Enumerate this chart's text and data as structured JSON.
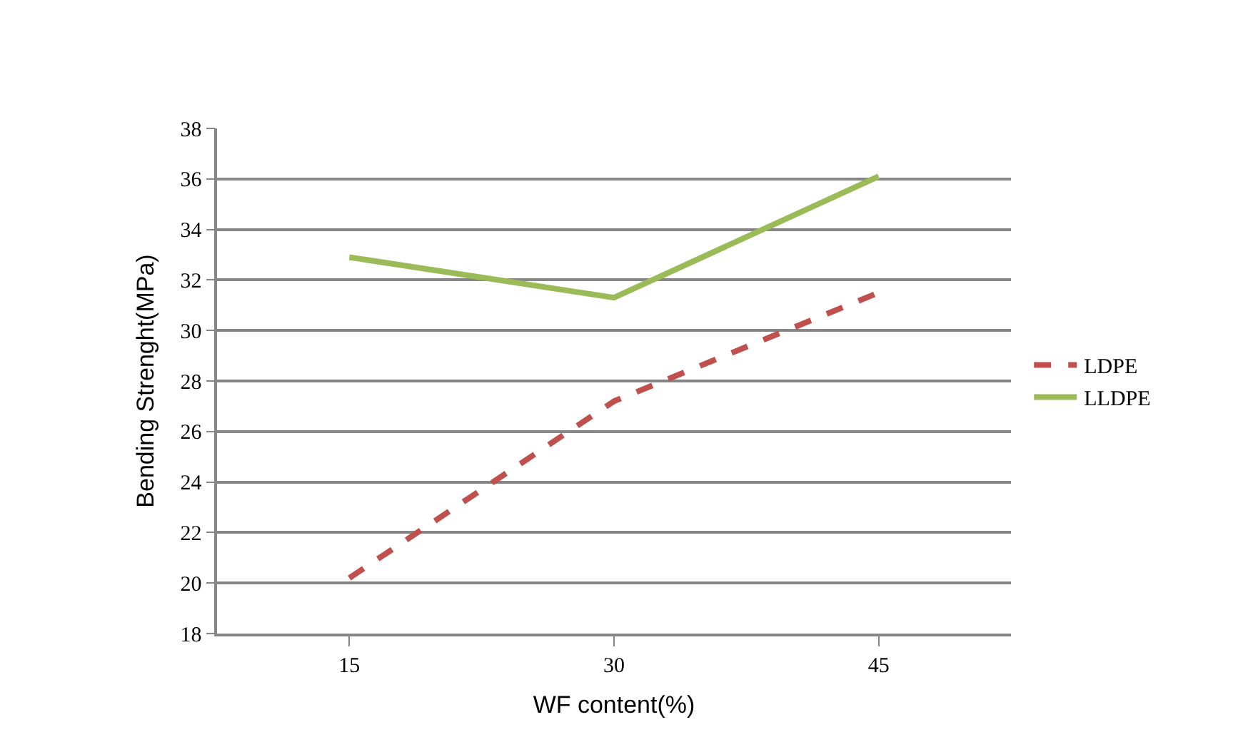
{
  "chart_data": {
    "type": "line",
    "xlabel": "WF content(%)",
    "ylabel": "Bending Strenght(MPa)",
    "categories": [
      "15",
      "30",
      "45"
    ],
    "series": [
      {
        "name": "LDPE",
        "color": "#c0504d",
        "values": [
          20.2,
          27.2,
          31.5
        ],
        "line_style": "dashed"
      },
      {
        "name": "LLDPE",
        "color": "#9bbb59",
        "values": [
          32.9,
          31.3,
          36.1
        ],
        "line_style": "solid"
      }
    ],
    "ylim": [
      18,
      38
    ],
    "yticks": [
      18,
      20,
      22,
      24,
      26,
      28,
      30,
      32,
      34,
      36,
      38
    ],
    "grid": "y",
    "legend": "right",
    "marker": "none"
  }
}
